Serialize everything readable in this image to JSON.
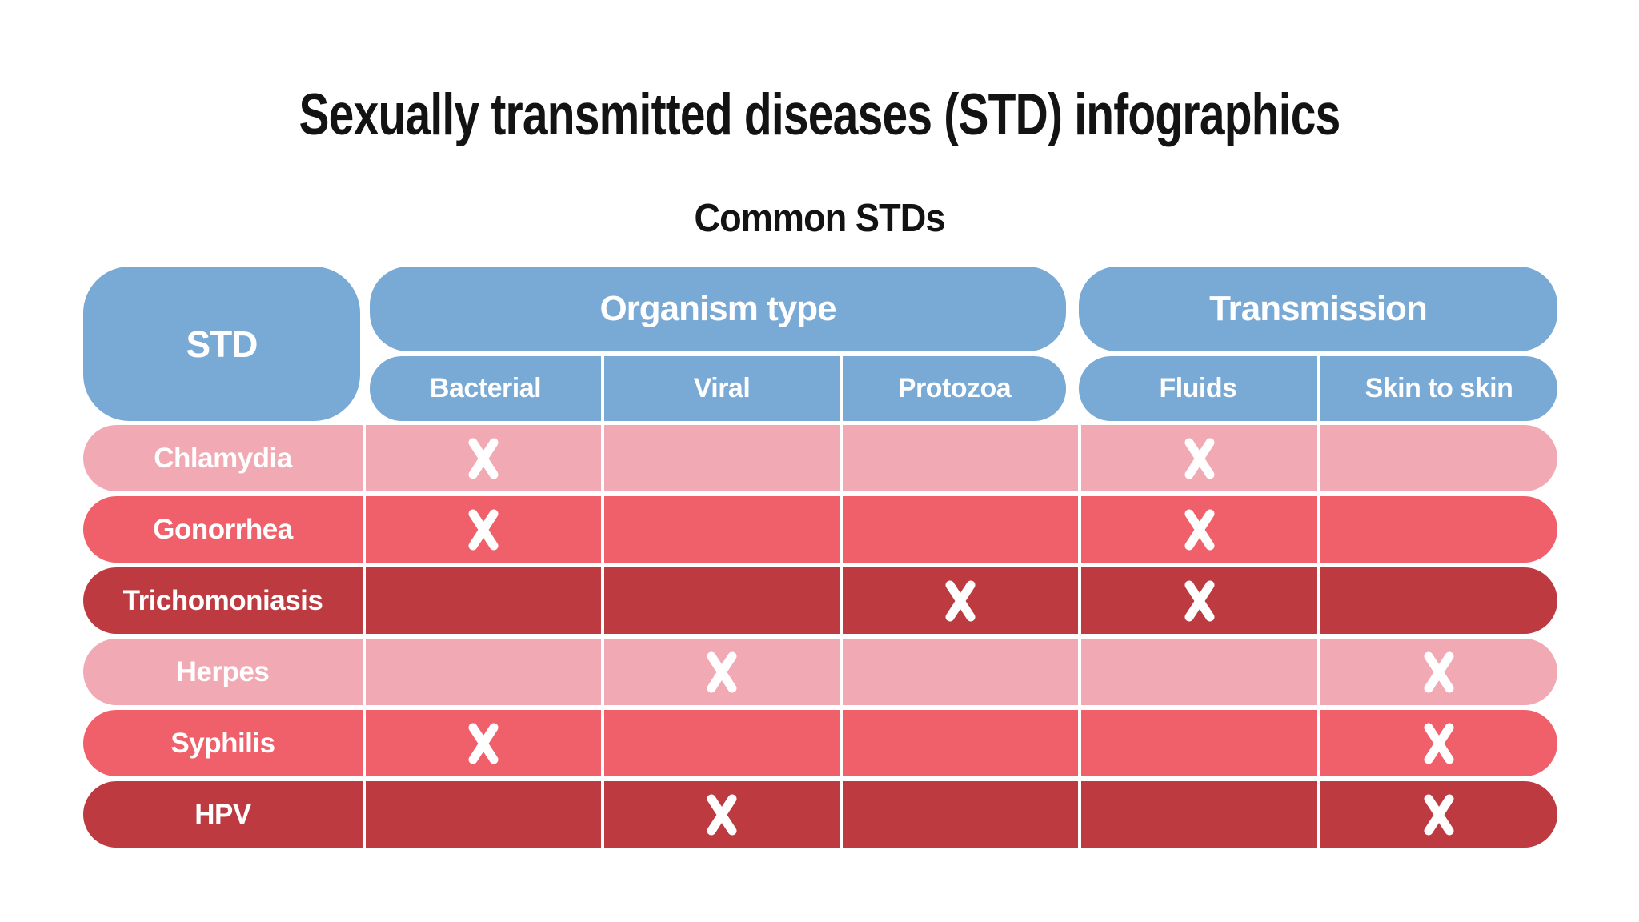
{
  "title": "Sexually transmitted diseases (STD) infographics",
  "subtitle": "Common STDs",
  "colors": {
    "background": "#ffffff",
    "header_blue": "#79a9d5",
    "title_text": "#131313",
    "cell_text": "#ffffff",
    "mark_white": "#ffffff",
    "tones": {
      "light": "#f1a9b3",
      "mid": "#f0606a",
      "dark": "#bc3a40"
    }
  },
  "chart_data": {
    "type": "table",
    "title": "Common STDs",
    "corner_header": "STD",
    "column_groups": [
      {
        "label": "Organism type",
        "columns": [
          "Bacterial",
          "Viral",
          "Protozoa"
        ]
      },
      {
        "label": "Transmission",
        "columns": [
          "Fluids",
          "Skin to skin"
        ]
      }
    ],
    "columns": [
      "Bacterial",
      "Viral",
      "Protozoa",
      "Fluids",
      "Skin to skin"
    ],
    "mark_glyph": "X",
    "rows": [
      {
        "std": "Chlamydia",
        "tone": "light",
        "marks": [
          1,
          0,
          0,
          1,
          0
        ]
      },
      {
        "std": "Gonorrhea",
        "tone": "mid",
        "marks": [
          1,
          0,
          0,
          1,
          0
        ]
      },
      {
        "std": "Trichomoniasis",
        "tone": "dark",
        "marks": [
          0,
          0,
          1,
          1,
          0
        ]
      },
      {
        "std": "Herpes",
        "tone": "light",
        "marks": [
          0,
          1,
          0,
          0,
          1
        ]
      },
      {
        "std": "Syphilis",
        "tone": "mid",
        "marks": [
          1,
          0,
          0,
          0,
          1
        ]
      },
      {
        "std": "HPV",
        "tone": "dark",
        "marks": [
          0,
          1,
          0,
          0,
          1
        ]
      }
    ]
  }
}
